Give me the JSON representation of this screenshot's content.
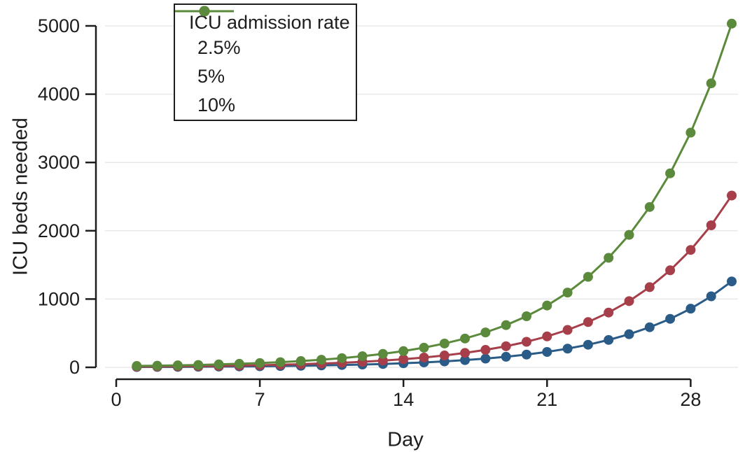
{
  "chart_data": {
    "type": "line",
    "title": "",
    "xlabel": "Day",
    "ylabel": "ICU beds needed",
    "x_ticks": [
      0,
      7,
      14,
      21,
      28
    ],
    "y_ticks": [
      0,
      1000,
      2000,
      3000,
      4000,
      5000
    ],
    "xlim": [
      0,
      30.6
    ],
    "ylim": [
      0,
      5000
    ],
    "grid": "horizontal light gray",
    "legend": {
      "title": "ICU admission rate",
      "position": "top-left inside"
    },
    "x": [
      1,
      2,
      3,
      4,
      5,
      6,
      7,
      8,
      9,
      10,
      11,
      12,
      13,
      14,
      15,
      16,
      17,
      18,
      19,
      20,
      21,
      22,
      23,
      24,
      25,
      26,
      27,
      28,
      29,
      30
    ],
    "series": [
      {
        "name": "2.5%",
        "color": "#2b5c88",
        "values": [
          5,
          6,
          7,
          9,
          11,
          13,
          16,
          19,
          23,
          28,
          34,
          41,
          49,
          60,
          72,
          87,
          106,
          128,
          155,
          187,
          226,
          274,
          331,
          401,
          485,
          587,
          710,
          859,
          1040,
          1258
        ]
      },
      {
        "name": "5%",
        "color": "#a63f4a",
        "values": [
          10,
          12,
          15,
          18,
          21,
          26,
          31,
          38,
          46,
          56,
          67,
          81,
          99,
          119,
          144,
          174,
          211,
          256,
          309,
          374,
          453,
          548,
          663,
          802,
          970,
          1174,
          1421,
          1719,
          2080,
          2516
        ]
      },
      {
        "name": "10%",
        "color": "#5c8a3c",
        "values": [
          20,
          24,
          29,
          35,
          43,
          52,
          63,
          76,
          92,
          111,
          135,
          163,
          197,
          238,
          288,
          349,
          422,
          511,
          618,
          748,
          905,
          1095,
          1325,
          1604,
          1940,
          2348,
          2841,
          3437,
          4159,
          5033
        ]
      }
    ],
    "colors": {
      "axis": "#1d1d1d",
      "grid": "#e8e8e8",
      "background": "#ffffff"
    },
    "marker": "filled circle"
  }
}
